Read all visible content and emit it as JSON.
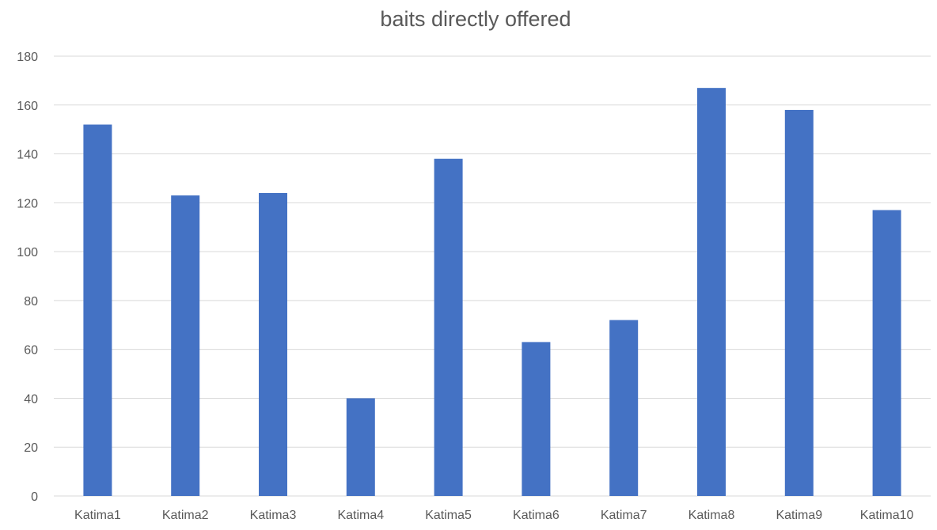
{
  "chart_data": {
    "type": "bar",
    "title": "baits directly offered",
    "xlabel": "",
    "ylabel": "",
    "categories": [
      "Katima1",
      "Katima2",
      "Katima3",
      "Katima4",
      "Katima5",
      "Katima6",
      "Katima7",
      "Katima8",
      "Katima9",
      "Katima10"
    ],
    "values": [
      152,
      123,
      124,
      40,
      138,
      63,
      72,
      167,
      158,
      117
    ],
    "ylim": [
      0,
      180
    ],
    "yticks": [
      "0",
      "20",
      "40",
      "60",
      "80",
      "100",
      "120",
      "140",
      "160",
      "180"
    ],
    "grid": true,
    "legend": "none",
    "bar_color": "#4472c4"
  }
}
